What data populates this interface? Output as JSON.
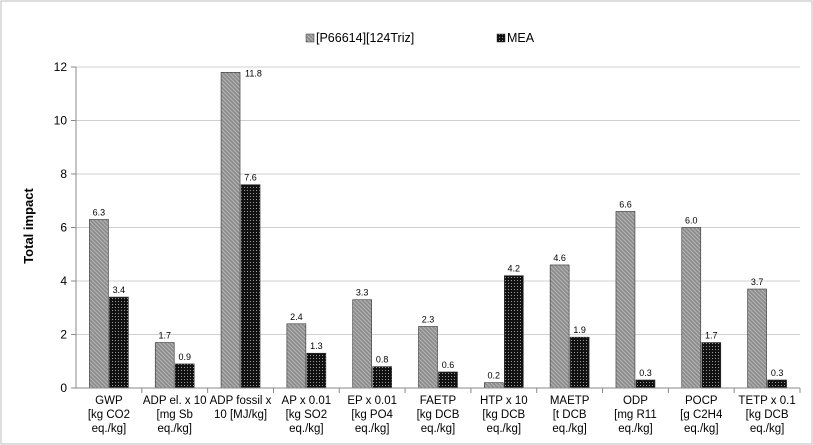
{
  "chart_data": {
    "type": "bar",
    "title": "",
    "xlabel": "",
    "ylabel": "Total impact",
    "ylim": [
      0,
      12
    ],
    "yticks": [
      0,
      2,
      4,
      6,
      8,
      10,
      12
    ],
    "grid": "horizontal",
    "legend_position": "top",
    "categories": [
      [
        "GWP",
        "[kg CO2",
        "eq./kg]"
      ],
      [
        "ADP el. x 10",
        "[mg Sb",
        "eq./kg]"
      ],
      [
        "ADP fossil x",
        "10 [MJ/kg]"
      ],
      [
        "AP x 0.01",
        "[kg SO2",
        "eq./kg]"
      ],
      [
        "EP x 0.01",
        "[kg PO4",
        "eq./kg]"
      ],
      [
        "FAETP",
        "[kg DCB",
        "eq./kg]"
      ],
      [
        "HTP x 10",
        "[kg DCB",
        "eq./kg]"
      ],
      [
        "MAETP",
        "[t DCB",
        "eq./kg]"
      ],
      [
        "ODP",
        "[mg R11",
        "eq./kg]"
      ],
      [
        "POCP",
        "[g C2H4",
        "eq./kg]"
      ],
      [
        "TETP x 0.1",
        "[kg DCB",
        "eq./kg]"
      ]
    ],
    "series": [
      {
        "name": "[P66614][124Triz]",
        "pattern": "gray-hatch",
        "values": [
          6.3,
          1.7,
          11.8,
          2.4,
          3.3,
          2.3,
          0.2,
          4.6,
          6.6,
          6.0,
          3.7
        ],
        "labels": [
          "6.3",
          "1.7",
          "11.8",
          "2.4",
          "3.3",
          "2.3",
          "0.2",
          "4.6",
          "6.6",
          "6.0",
          "3.7"
        ]
      },
      {
        "name": "MEA",
        "pattern": "black-dots",
        "values": [
          3.4,
          0.9,
          7.6,
          1.3,
          0.8,
          0.6,
          4.2,
          1.9,
          0.3,
          1.7,
          0.3
        ],
        "labels": [
          "3.4",
          "0.9",
          "7.6",
          "1.3",
          "0.8",
          "0.6",
          "4.2",
          "1.9",
          "0.3",
          "1.7",
          "0.3"
        ]
      }
    ]
  }
}
